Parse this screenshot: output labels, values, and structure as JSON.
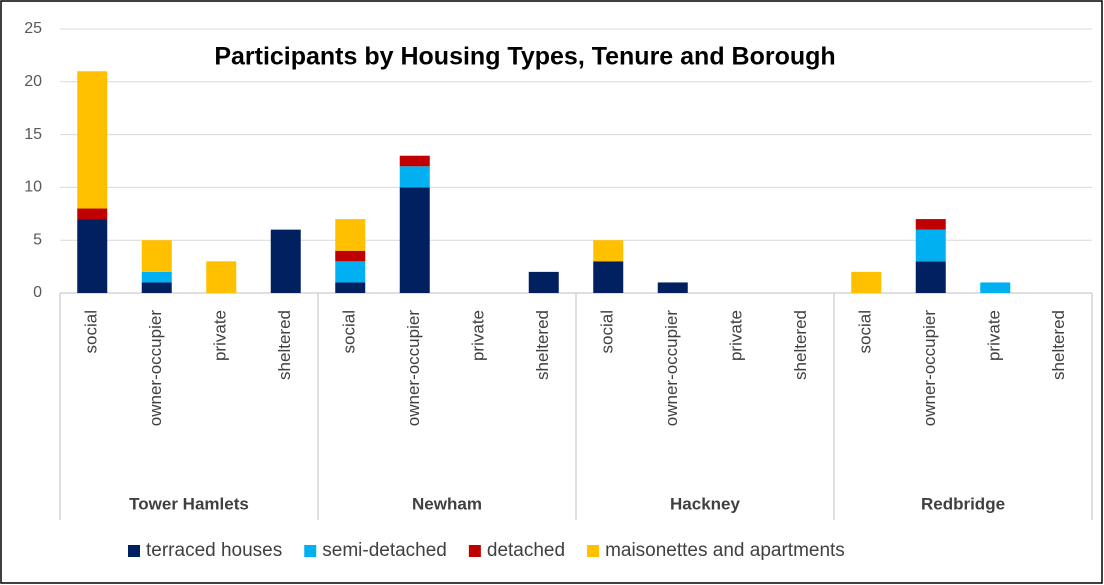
{
  "chart_data": {
    "type": "stacked_bar",
    "title": "Participants by Housing Types, Tenure and Borough",
    "groups": [
      "Tower Hamlets",
      "Newham",
      "Hackney",
      "Redbridge"
    ],
    "categories": [
      "social",
      "owner-occupier",
      "private",
      "sheltered",
      "social",
      "owner-occupier",
      "private",
      "sheltered",
      "social",
      "owner-occupier",
      "private",
      "sheltered",
      "social",
      "owner-occupier",
      "private",
      "sheltered"
    ],
    "series": [
      {
        "name": "terraced houses",
        "color": "#002060",
        "values": [
          7,
          1,
          0,
          6,
          1,
          10,
          0,
          2,
          3,
          1,
          0,
          0,
          0,
          3,
          0,
          0
        ]
      },
      {
        "name": "semi-detached",
        "color": "#00b0f0",
        "values": [
          0,
          1,
          0,
          0,
          2,
          2,
          0,
          0,
          0,
          0,
          0,
          0,
          0,
          3,
          1,
          0
        ]
      },
      {
        "name": "detached",
        "color": "#c00000",
        "values": [
          1,
          0,
          0,
          0,
          1,
          1,
          0,
          0,
          0,
          0,
          0,
          0,
          0,
          1,
          0,
          0
        ]
      },
      {
        "name": "maisonettes and apartments",
        "color": "#ffc000",
        "values": [
          13,
          3,
          3,
          0,
          3,
          0,
          0,
          0,
          2,
          0,
          0,
          0,
          2,
          0,
          0,
          0
        ]
      }
    ],
    "ylim": [
      0,
      25
    ],
    "yticks": [
      0,
      5,
      10,
      15,
      20,
      25
    ],
    "grid": true,
    "legend": "bottom"
  }
}
